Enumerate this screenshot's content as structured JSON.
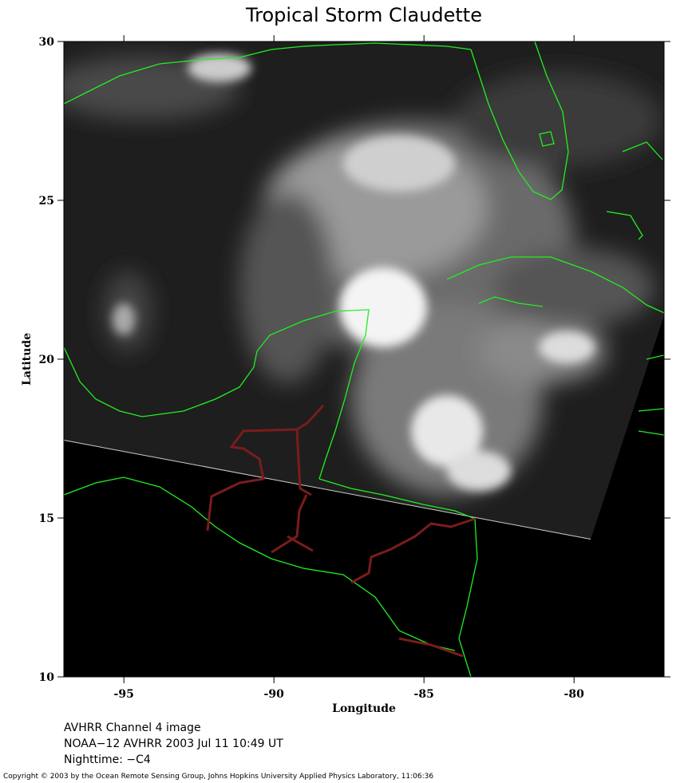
{
  "map": {
    "title": "Tropical Storm Claudette",
    "xlabel": "Longitude",
    "ylabel": "Latitude",
    "xlim": [
      -97,
      -77
    ],
    "ylim": [
      10,
      30
    ],
    "xticks": [
      -95,
      -90,
      -85,
      -80
    ],
    "yticks": [
      10,
      15,
      20,
      25,
      30
    ],
    "notes": [
      "AVHRR Channel 4 image",
      "NOAA−12 AVHRR 2003 Jul 11 10:49 UT",
      "Nighttime: −C4"
    ],
    "copyright": "Copyright © 2003 by the Ocean Remote Sensing Group, Johns Hopkins University Applied Physics Laboratory, 11:06:36"
  }
}
